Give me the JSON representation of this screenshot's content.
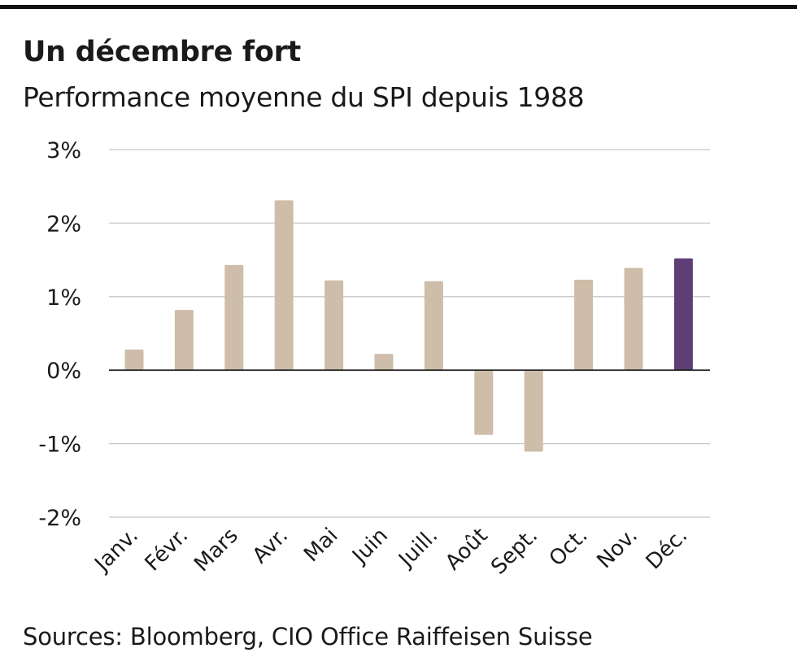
{
  "title": "Un décembre fort",
  "subtitle": "Performance moyenne du SPI depuis 1988",
  "source": "Sources: Bloomberg, CIO Office Raiffeisen Suisse",
  "colors": {
    "bar": "#cdbda9",
    "highlight": "#5e3e74",
    "grid": "#c8c8c8",
    "zero_line": "#1a1a1a",
    "top_rule": "#111111"
  },
  "chart_data": {
    "type": "bar",
    "title": "Un décembre fort",
    "subtitle": "Performance moyenne du SPI depuis 1988",
    "categories": [
      "Janv.",
      "Févr.",
      "Mars",
      "Avr.",
      "Mai",
      "Juin",
      "Juill.",
      "Août",
      "Sept.",
      "Oct.",
      "Nov.",
      "Déc."
    ],
    "values": [
      0.28,
      0.82,
      1.43,
      2.31,
      1.22,
      0.22,
      1.21,
      -0.88,
      -1.11,
      1.23,
      1.39,
      1.52
    ],
    "highlight_category": "Déc.",
    "unit": "%",
    "ylim": [
      -2,
      3
    ],
    "yticks": [
      3,
      2,
      1,
      0,
      -1,
      -2
    ],
    "ytick_labels": [
      "3%",
      "2%",
      "1%",
      "0%",
      "-1%",
      "-2%"
    ],
    "grid": true,
    "legend": "none",
    "xlabel": "",
    "ylabel": ""
  }
}
